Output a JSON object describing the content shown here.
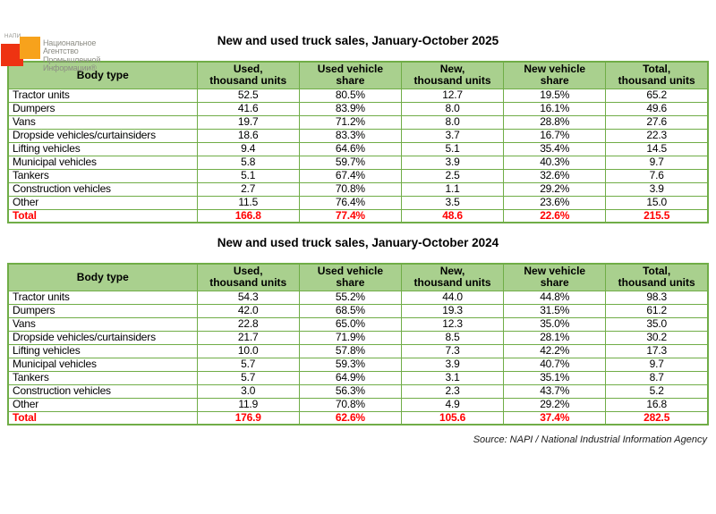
{
  "logo": {
    "acronym": "НАПИ",
    "org_lines": "Национальное\nАгентство\nПромышленной\nИнформации®",
    "colors": {
      "red_square": "#ee3312",
      "orange_square": "#f7a21c",
      "text": "#8d8d85"
    }
  },
  "chart_data": [
    {
      "type": "table",
      "title": "New and used truck sales, January-October 2025",
      "columns": [
        "Body type",
        "Used,\nthousand units",
        "Used vehicle\nshare",
        "New,\nthousand units",
        "New vehicle\nshare",
        "Total,\nthousand units"
      ],
      "rows": [
        [
          "Tractor units",
          "52.5",
          "80.5%",
          "12.7",
          "19.5%",
          "65.2"
        ],
        [
          "Dumpers",
          "41.6",
          "83.9%",
          "8.0",
          "16.1%",
          "49.6"
        ],
        [
          "Vans",
          "19.7",
          "71.2%",
          "8.0",
          "28.8%",
          "27.6"
        ],
        [
          "Dropside vehicles/curtainsiders",
          "18.6",
          "83.3%",
          "3.7",
          "16.7%",
          "22.3"
        ],
        [
          "Lifting vehicles",
          "9.4",
          "64.6%",
          "5.1",
          "35.4%",
          "14.5"
        ],
        [
          "Municipal vehicles",
          "5.8",
          "59.7%",
          "3.9",
          "40.3%",
          "9.7"
        ],
        [
          "Tankers",
          "5.1",
          "67.4%",
          "2.5",
          "32.6%",
          "7.6"
        ],
        [
          "Construction vehicles",
          "2.7",
          "70.8%",
          "1.1",
          "29.2%",
          "3.9"
        ],
        [
          "Other",
          "11.5",
          "76.4%",
          "3.5",
          "23.6%",
          "15.0"
        ]
      ],
      "total_row": [
        "Total",
        "166.8",
        "77.4%",
        "48.6",
        "22.6%",
        "215.5"
      ]
    },
    {
      "type": "table",
      "title": "New and used truck sales, January-October 2024",
      "columns": [
        "Body type",
        "Used,\nthousand units",
        "Used vehicle\nshare",
        "New,\nthousand units",
        "New vehicle\nshare",
        "Total,\nthousand units"
      ],
      "rows": [
        [
          "Tractor units",
          "54.3",
          "55.2%",
          "44.0",
          "44.8%",
          "98.3"
        ],
        [
          "Dumpers",
          "42.0",
          "68.5%",
          "19.3",
          "31.5%",
          "61.2"
        ],
        [
          "Vans",
          "22.8",
          "65.0%",
          "12.3",
          "35.0%",
          "35.0"
        ],
        [
          "Dropside vehicles/curtainsiders",
          "21.7",
          "71.9%",
          "8.5",
          "28.1%",
          "30.2"
        ],
        [
          "Lifting vehicles",
          "10.0",
          "57.8%",
          "7.3",
          "42.2%",
          "17.3"
        ],
        [
          "Municipal vehicles",
          "5.7",
          "59.3%",
          "3.9",
          "40.7%",
          "9.7"
        ],
        [
          "Tankers",
          "5.7",
          "64.9%",
          "3.1",
          "35.1%",
          "8.7"
        ],
        [
          "Construction vehicles",
          "3.0",
          "56.3%",
          "2.3",
          "43.7%",
          "5.2"
        ],
        [
          "Other",
          "11.9",
          "70.8%",
          "4.9",
          "29.2%",
          "16.8"
        ]
      ],
      "total_row": [
        "Total",
        "176.9",
        "62.6%",
        "105.6",
        "37.4%",
        "282.5"
      ]
    }
  ],
  "source_note": "Source: NAPI / National Industrial Information Agency",
  "colors": {
    "header_bg": "#a9d08e",
    "border_green": "#70ad47",
    "total_text": "#ff0000"
  }
}
